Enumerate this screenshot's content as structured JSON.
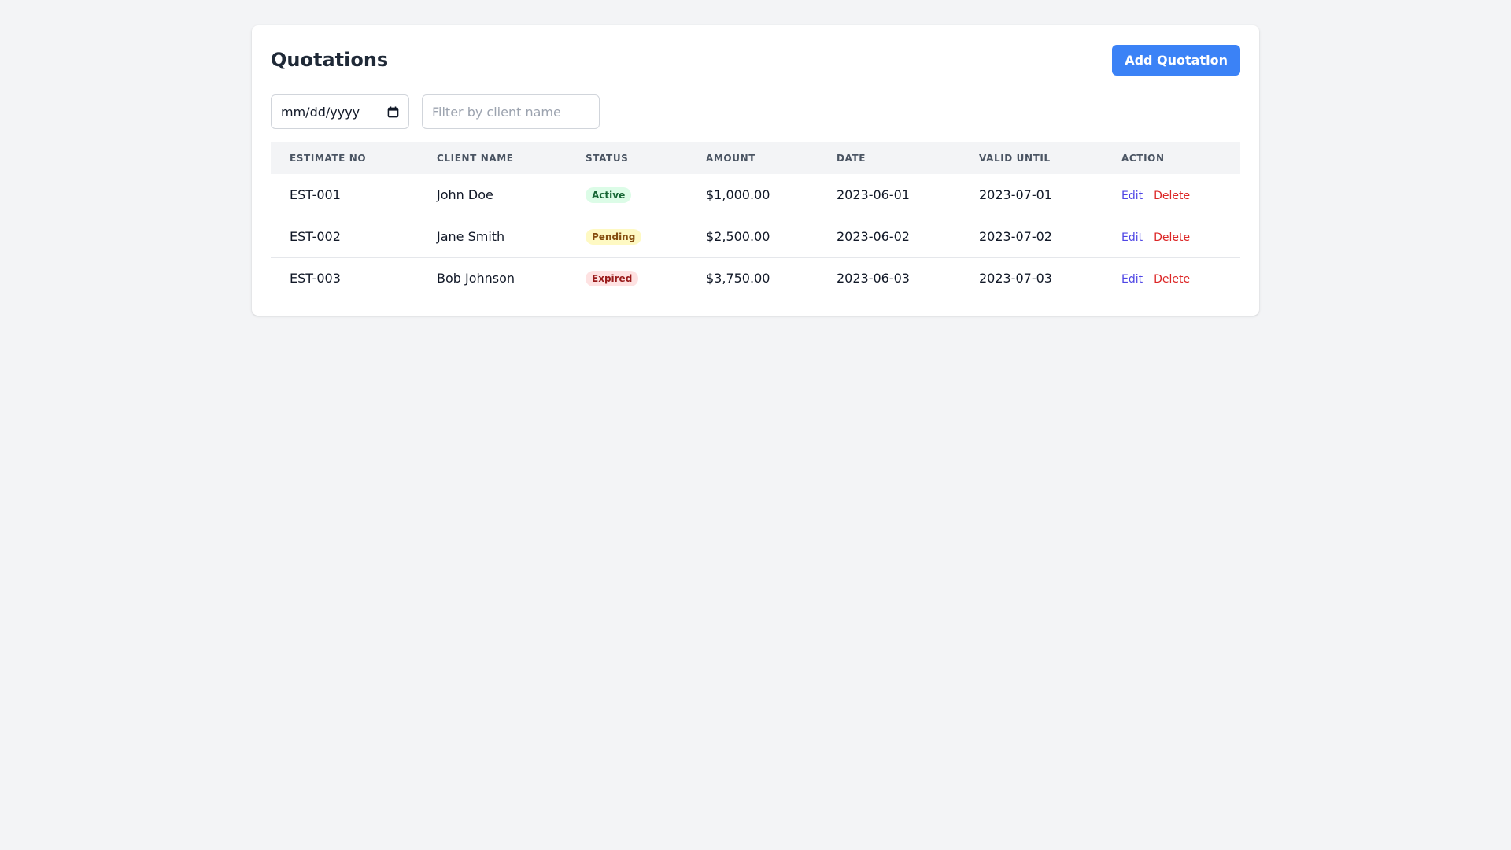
{
  "header": {
    "title": "Quotations",
    "add_button_label": "Add Quotation"
  },
  "filters": {
    "date_placeholder": "mm/dd/yyyy",
    "client_placeholder": "Filter by client name"
  },
  "table": {
    "columns": [
      "ESTIMATE NO",
      "CLIENT NAME",
      "STATUS",
      "AMOUNT",
      "DATE",
      "VALID UNTIL",
      "ACTION"
    ],
    "rows": [
      {
        "estimate_no": "EST-001",
        "client": "John Doe",
        "status": "Active",
        "amount": "$1,000.00",
        "date": "2023-06-01",
        "valid_until": "2023-07-01",
        "edit": "Edit",
        "delete": "Delete"
      },
      {
        "estimate_no": "EST-002",
        "client": "Jane Smith",
        "status": "Pending",
        "amount": "$2,500.00",
        "date": "2023-06-02",
        "valid_until": "2023-07-02",
        "edit": "Edit",
        "delete": "Delete"
      },
      {
        "estimate_no": "EST-003",
        "client": "Bob Johnson",
        "status": "Expired",
        "amount": "$3,750.00",
        "date": "2023-06-03",
        "valid_until": "2023-07-03",
        "edit": "Edit",
        "delete": "Delete"
      }
    ]
  },
  "colors": {
    "accent": "#3b82f6",
    "status_active": "#dcfce7",
    "status_pending": "#fef9c3",
    "status_expired": "#fee2e2",
    "edit_link": "#4f46e5",
    "delete_link": "#dc2626"
  },
  "icons": {
    "date_picker": "calendar-icon"
  }
}
